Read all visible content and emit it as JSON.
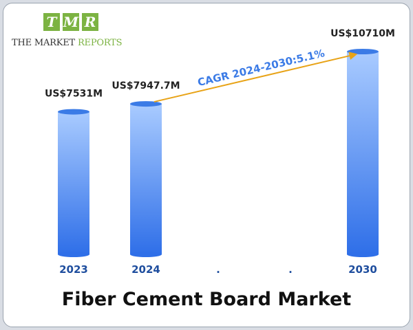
{
  "brand": {
    "letters": [
      "T",
      "M",
      "R"
    ],
    "name_part1": "THE MARKET ",
    "name_part2": "REPORTS"
  },
  "chart_data": {
    "type": "bar",
    "title": "Fiber Cement Board Market",
    "categories": [
      "2023",
      "2024",
      ".",
      ".",
      "2030"
    ],
    "values": [
      7531,
      7947.7,
      null,
      null,
      10710
    ],
    "value_labels": [
      "US$7531M",
      "US$7947.7M",
      "",
      "",
      "US$10710M"
    ],
    "unit": "US$ Million",
    "annotation": "CAGR 2024-2030:5.1%",
    "colors": {
      "bar_top": "#a9cbff",
      "bar_bottom": "#2f6fe8",
      "cap": "#3b7be6",
      "year_label": "#1f4e9e",
      "arrow": "#e8a317",
      "annotation_text": "#3b7be6"
    }
  }
}
